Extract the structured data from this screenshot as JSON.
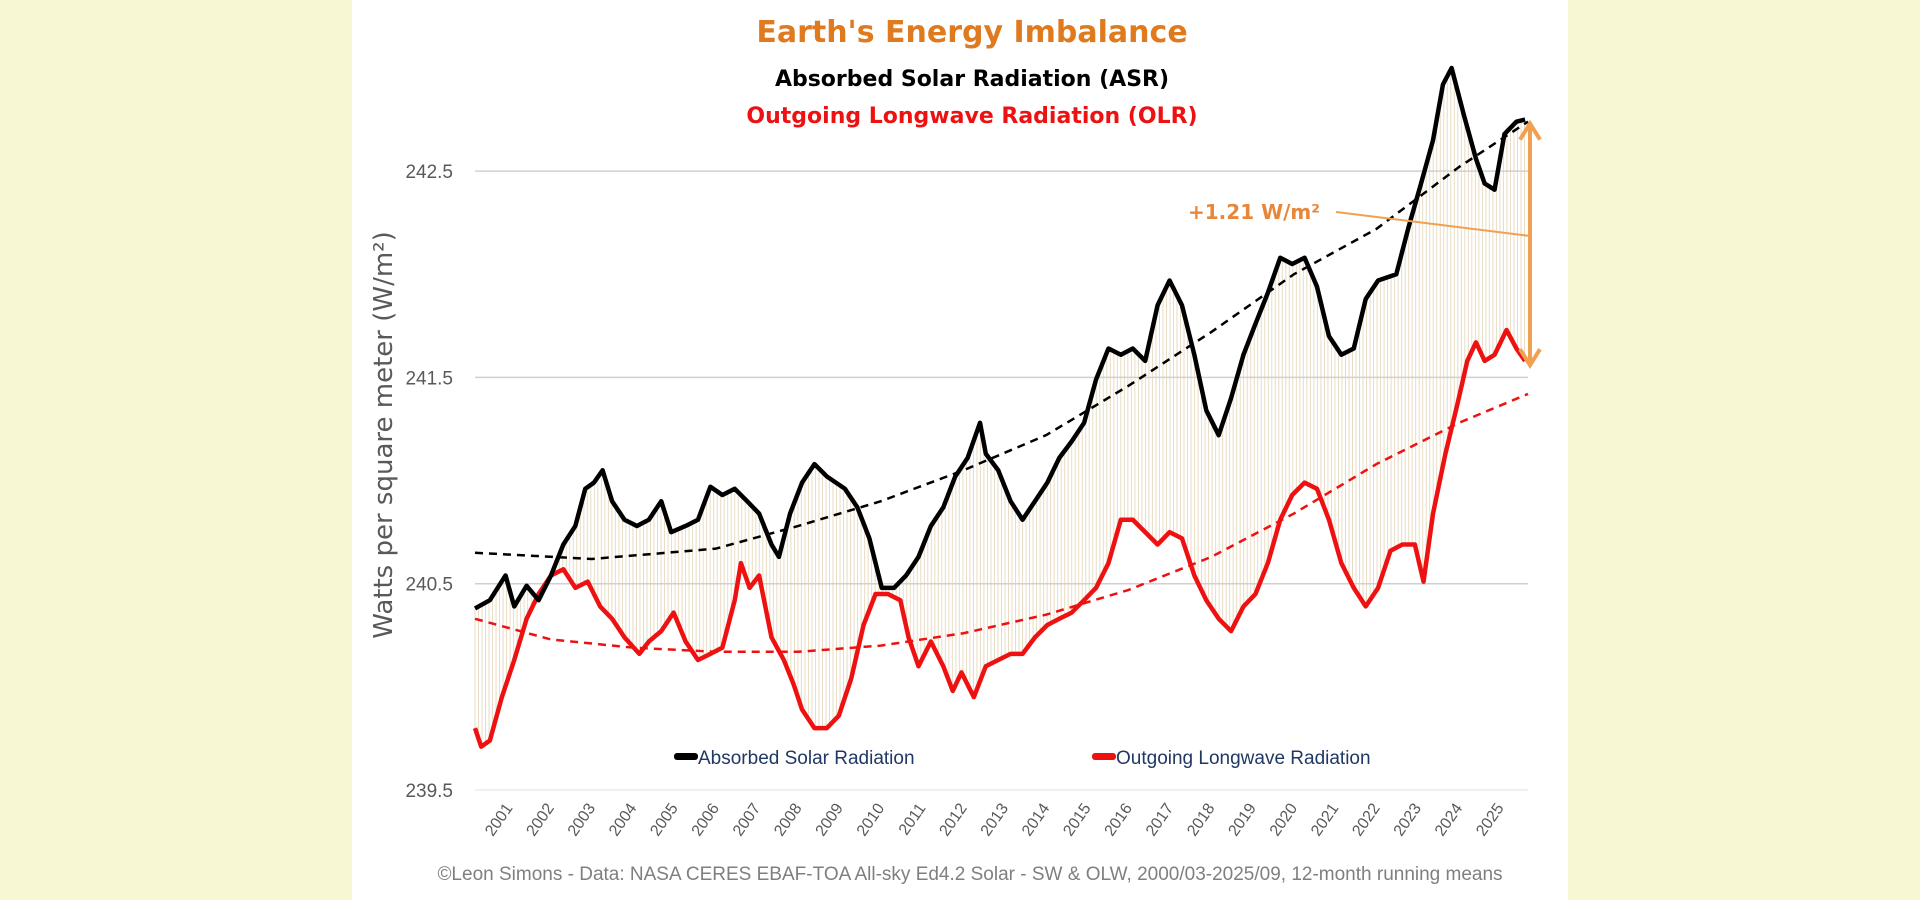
{
  "chart_data": {
    "type": "line",
    "title": "Earth's Energy Imbalance",
    "subtitle_asr": "Absorbed Solar Radiation (ASR)",
    "subtitle_olr": "Outgoing Longwave Radiation (OLR)",
    "ylabel": "Watts per square meter (W/m²)",
    "xlabel": "",
    "ylim": [
      239.5,
      243.0
    ],
    "xlim": [
      2000.17,
      2025.67
    ],
    "yticks": [
      "239.5",
      "240.5",
      "241.5",
      "242.5"
    ],
    "ytick_values": [
      239.5,
      240.5,
      241.5,
      242.5
    ],
    "xticks": [
      "2001",
      "2002",
      "2003",
      "2004",
      "2005",
      "2006",
      "2007",
      "2008",
      "2009",
      "2010",
      "2011",
      "2012",
      "2013",
      "2014",
      "2015",
      "2016",
      "2017",
      "2018",
      "2019",
      "2020",
      "2021",
      "2022",
      "2023",
      "2024",
      "2025"
    ],
    "grid": true,
    "legend_position": "bottom",
    "footer": "©Leon Simons - Data: NASA CERES EBAF-TOA All-sky Ed4.2 Solar - SW & OLW, 2000/03-2025/09, 12-month running means",
    "annotation": {
      "text": "+1.21 W/m²",
      "from": 241.54,
      "to": 242.75,
      "x": 2025.67
    },
    "colors": {
      "title": "#e07a1f",
      "asr": "#000000",
      "olr": "#ee1111",
      "annotation": "#f0a050",
      "fill": "#e9dcc4",
      "legend_text": "#1f3864",
      "background": "#f7f8d3"
    },
    "series": [
      {
        "name": "Absorbed Solar Radiation",
        "color": "#000000",
        "x": [
          2000.17,
          2000.53,
          2000.91,
          2001.12,
          2001.42,
          2001.71,
          2002.01,
          2002.31,
          2002.6,
          2002.84,
          2003.05,
          2003.26,
          2003.49,
          2003.79,
          2004.09,
          2004.38,
          2004.68,
          2004.92,
          2005.27,
          2005.57,
          2005.87,
          2006.16,
          2006.46,
          2006.76,
          2007.05,
          2007.35,
          2007.53,
          2007.8,
          2008.09,
          2008.39,
          2008.69,
          2009.13,
          2009.43,
          2009.72,
          2010.02,
          2010.32,
          2010.61,
          2010.91,
          2011.21,
          2011.51,
          2011.8,
          2012.1,
          2012.4,
          2012.54,
          2012.84,
          2013.14,
          2013.43,
          2013.73,
          2014.03,
          2014.32,
          2014.62,
          2014.92,
          2015.21,
          2015.51,
          2015.81,
          2016.1,
          2016.4,
          2016.7,
          2016.99,
          2017.29,
          2017.59,
          2017.88,
          2018.18,
          2018.48,
          2018.78,
          2019.07,
          2019.37,
          2019.67,
          2019.96,
          2020.26,
          2020.56,
          2020.85,
          2021.15,
          2021.45,
          2021.74,
          2022.04,
          2022.48,
          2022.78,
          2023.08,
          2023.37,
          2023.61,
          2023.82,
          2024.12,
          2024.41,
          2024.62,
          2024.86,
          2025.1,
          2025.39,
          2025.6
        ],
        "y": [
          240.38,
          240.42,
          240.54,
          240.39,
          240.49,
          240.42,
          240.54,
          240.69,
          240.78,
          240.96,
          240.99,
          241.05,
          240.9,
          240.81,
          240.78,
          240.81,
          240.9,
          240.75,
          240.78,
          240.81,
          240.97,
          240.93,
          240.96,
          240.9,
          240.84,
          240.69,
          240.63,
          240.84,
          240.99,
          241.08,
          241.02,
          240.96,
          240.87,
          240.72,
          240.48,
          240.48,
          240.54,
          240.63,
          240.78,
          240.87,
          241.02,
          241.11,
          241.28,
          241.13,
          241.05,
          240.9,
          240.81,
          240.9,
          240.99,
          241.11,
          241.19,
          241.28,
          241.49,
          241.64,
          241.61,
          241.64,
          241.58,
          241.85,
          241.97,
          241.85,
          241.61,
          241.34,
          241.22,
          241.4,
          241.61,
          241.76,
          241.91,
          242.08,
          242.05,
          242.08,
          241.94,
          241.7,
          241.61,
          241.64,
          241.88,
          241.97,
          242.0,
          242.23,
          242.44,
          242.65,
          242.92,
          243.0,
          242.77,
          242.56,
          242.44,
          242.41,
          242.68,
          242.74,
          242.75
        ]
      },
      {
        "name": "Outgoing Longwave Radiation",
        "color": "#ee1111",
        "x": [
          2000.17,
          2000.32,
          2000.53,
          2000.82,
          2001.12,
          2001.42,
          2001.71,
          2002.01,
          2002.31,
          2002.6,
          2002.9,
          2003.2,
          2003.49,
          2003.79,
          2004.15,
          2004.38,
          2004.68,
          2004.98,
          2005.27,
          2005.57,
          2005.87,
          2006.16,
          2006.46,
          2006.61,
          2006.82,
          2007.05,
          2007.35,
          2007.65,
          2007.89,
          2008.09,
          2008.39,
          2008.69,
          2008.98,
          2009.28,
          2009.58,
          2009.87,
          2010.17,
          2010.47,
          2010.67,
          2010.91,
          2011.21,
          2011.51,
          2011.74,
          2011.95,
          2012.25,
          2012.54,
          2012.84,
          2013.14,
          2013.43,
          2013.73,
          2014.03,
          2014.32,
          2014.62,
          2014.92,
          2015.21,
          2015.51,
          2015.81,
          2016.1,
          2016.4,
          2016.7,
          2016.99,
          2017.29,
          2017.59,
          2017.88,
          2018.18,
          2018.48,
          2018.78,
          2019.07,
          2019.37,
          2019.67,
          2019.96,
          2020.26,
          2020.56,
          2020.85,
          2021.15,
          2021.45,
          2021.74,
          2022.04,
          2022.34,
          2022.63,
          2022.93,
          2023.14,
          2023.37,
          2023.67,
          2023.96,
          2024.2,
          2024.41,
          2024.62,
          2024.86,
          2025.15,
          2025.39,
          2025.6
        ],
        "y": [
          239.8,
          239.71,
          239.74,
          239.95,
          240.13,
          240.33,
          240.45,
          240.54,
          240.57,
          240.48,
          240.51,
          240.39,
          240.33,
          240.24,
          240.16,
          240.22,
          240.27,
          240.36,
          240.22,
          240.13,
          240.16,
          240.19,
          240.42,
          240.6,
          240.48,
          240.54,
          240.24,
          240.13,
          240.01,
          239.89,
          239.8,
          239.8,
          239.86,
          240.04,
          240.3,
          240.45,
          240.45,
          240.42,
          240.24,
          240.1,
          240.22,
          240.1,
          239.98,
          240.07,
          239.95,
          240.1,
          240.13,
          240.16,
          240.16,
          240.24,
          240.3,
          240.33,
          240.36,
          240.42,
          240.48,
          240.6,
          240.81,
          240.81,
          240.75,
          240.69,
          240.75,
          240.72,
          240.54,
          240.42,
          240.33,
          240.27,
          240.39,
          240.45,
          240.6,
          240.81,
          240.93,
          240.99,
          240.96,
          240.81,
          240.6,
          240.48,
          240.39,
          240.48,
          240.66,
          240.69,
          240.69,
          240.51,
          240.84,
          241.13,
          241.37,
          241.58,
          241.67,
          241.58,
          241.61,
          241.73,
          241.64,
          241.58
        ]
      }
    ],
    "trendlines": [
      {
        "series": "Absorbed Solar Radiation",
        "color": "#000000",
        "x": [
          2000.17,
          2003,
          2006,
          2008,
          2010,
          2012,
          2014,
          2016,
          2018,
          2020,
          2022,
          2024,
          2025.67
        ],
        "y": [
          240.65,
          240.62,
          240.67,
          240.78,
          240.9,
          241.05,
          241.22,
          241.46,
          241.72,
          242.0,
          242.22,
          242.52,
          242.74
        ]
      },
      {
        "series": "Outgoing Longwave Radiation",
        "color": "#ee1111",
        "x": [
          2000.17,
          2002,
          2004,
          2006,
          2008,
          2010,
          2012,
          2014,
          2016,
          2018,
          2020,
          2022,
          2024,
          2025.67
        ],
        "y": [
          240.33,
          240.23,
          240.19,
          240.17,
          240.17,
          240.2,
          240.26,
          240.35,
          240.47,
          240.63,
          240.84,
          241.08,
          241.28,
          241.42
        ]
      }
    ]
  }
}
